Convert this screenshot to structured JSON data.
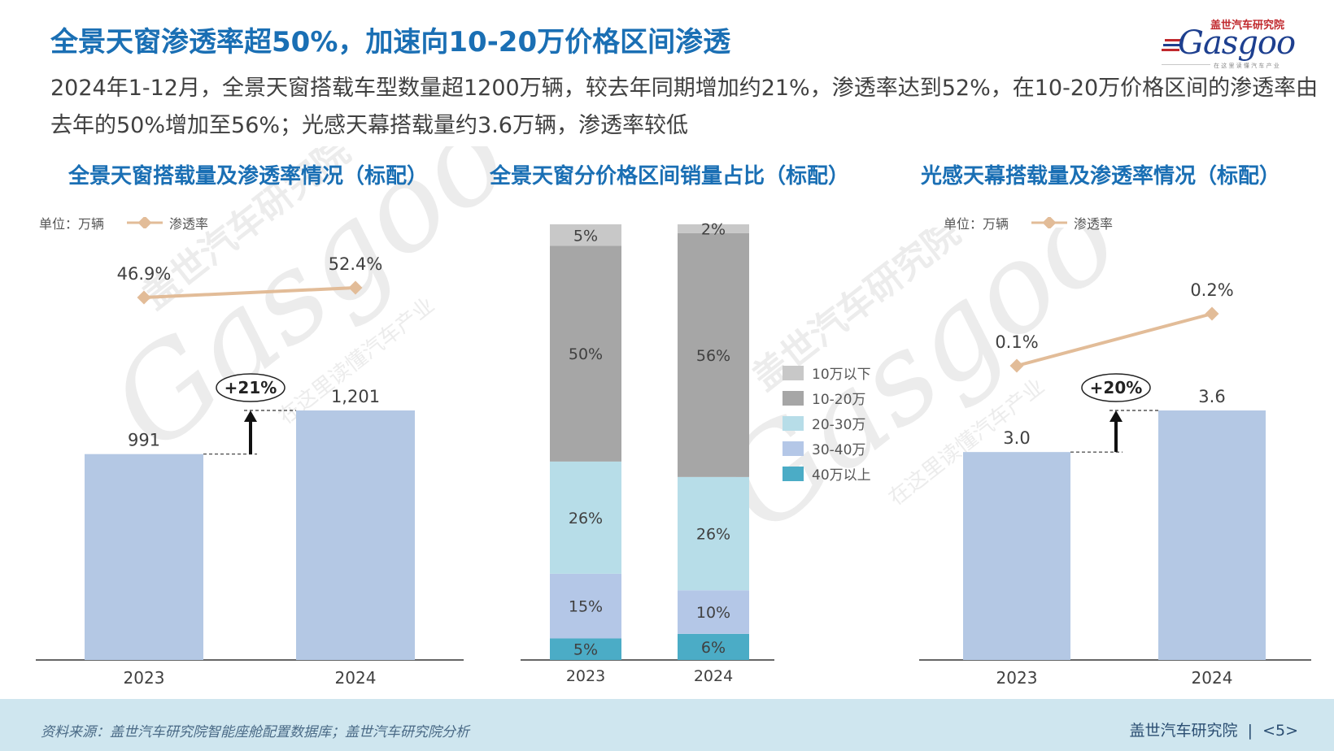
{
  "header": {
    "title": "全景天窗渗透率超50%，加速向10-20万价格区间渗透",
    "subtitle": "2024年1-12月，全景天窗搭载车型数量超1200万辆，较去年同期增加约21%，渗透率达到52%，在10-20万价格区间的渗透率由去年的50%增加至56%；光感天幕搭载量约3.6万辆，渗透率较低"
  },
  "logo": {
    "cn": "盖世汽车研究院",
    "en": "Gasgoo",
    "slogan": "在 这 里 读 懂 汽 车 产 业"
  },
  "watermark": {
    "cn": "盖世汽车研究院",
    "en": "Gasgoo",
    "slogan": "在这里读懂汽车产业"
  },
  "colors": {
    "title_blue": "#1a6fb4",
    "bar_blue": "#b4c8e4",
    "line_tan": "#e2bc98",
    "seg_under10": "#c8c8c8",
    "seg_10_20": "#a6a6a6",
    "seg_20_30": "#b7dde8",
    "seg_30_40": "#b4c7e7",
    "seg_over40": "#4bacc6",
    "footer_bg": "#cfe6ef"
  },
  "legend_common": {
    "unit": "单位：万辆",
    "series": "渗透率"
  },
  "chart_data": [
    {
      "type": "bar",
      "title": "全景天窗搭载量及渗透率情况（标配）",
      "unit": "单位：万辆",
      "categories": [
        "2023",
        "2024"
      ],
      "series": [
        {
          "name": "搭载量",
          "type": "bar",
          "values": [
            991,
            1201
          ],
          "labels": [
            "991",
            "1,201"
          ]
        },
        {
          "name": "渗透率",
          "type": "line",
          "values": [
            46.9,
            52.4
          ],
          "labels": [
            "46.9%",
            "52.4%"
          ]
        }
      ],
      "annotation": "+21%"
    },
    {
      "type": "bar",
      "stacked": true,
      "title": "全景天窗分价格区间销量占比（标配）",
      "categories": [
        "2023",
        "2024"
      ],
      "series": [
        {
          "name": "40万以上",
          "values": [
            5,
            6
          ]
        },
        {
          "name": "30-40万",
          "values": [
            15,
            10
          ]
        },
        {
          "name": "20-30万",
          "values": [
            26,
            26
          ]
        },
        {
          "name": "10-20万",
          "values": [
            50,
            56
          ]
        },
        {
          "name": "10万以下",
          "values": [
            5,
            2
          ]
        }
      ],
      "legend": [
        "10万以下",
        "10-20万",
        "20-30万",
        "30-40万",
        "40万以上"
      ],
      "legend_position": "right"
    },
    {
      "type": "bar",
      "title": "光感天幕搭载量及渗透率情况（标配）",
      "unit": "单位：万辆",
      "categories": [
        "2023",
        "2024"
      ],
      "series": [
        {
          "name": "搭载量",
          "type": "bar",
          "values": [
            3.0,
            3.6
          ],
          "labels": [
            "3.0",
            "3.6"
          ]
        },
        {
          "name": "渗透率",
          "type": "line",
          "values": [
            0.1,
            0.2
          ],
          "labels": [
            "0.1%",
            "0.2%"
          ]
        }
      ],
      "annotation": "+20%"
    }
  ],
  "footer": {
    "source": "资料来源：盖世汽车研究院智能座舱配置数据库；盖世汽车研究院分析",
    "brand": "盖世汽车研究院",
    "separator": "|",
    "page": "<5>"
  }
}
